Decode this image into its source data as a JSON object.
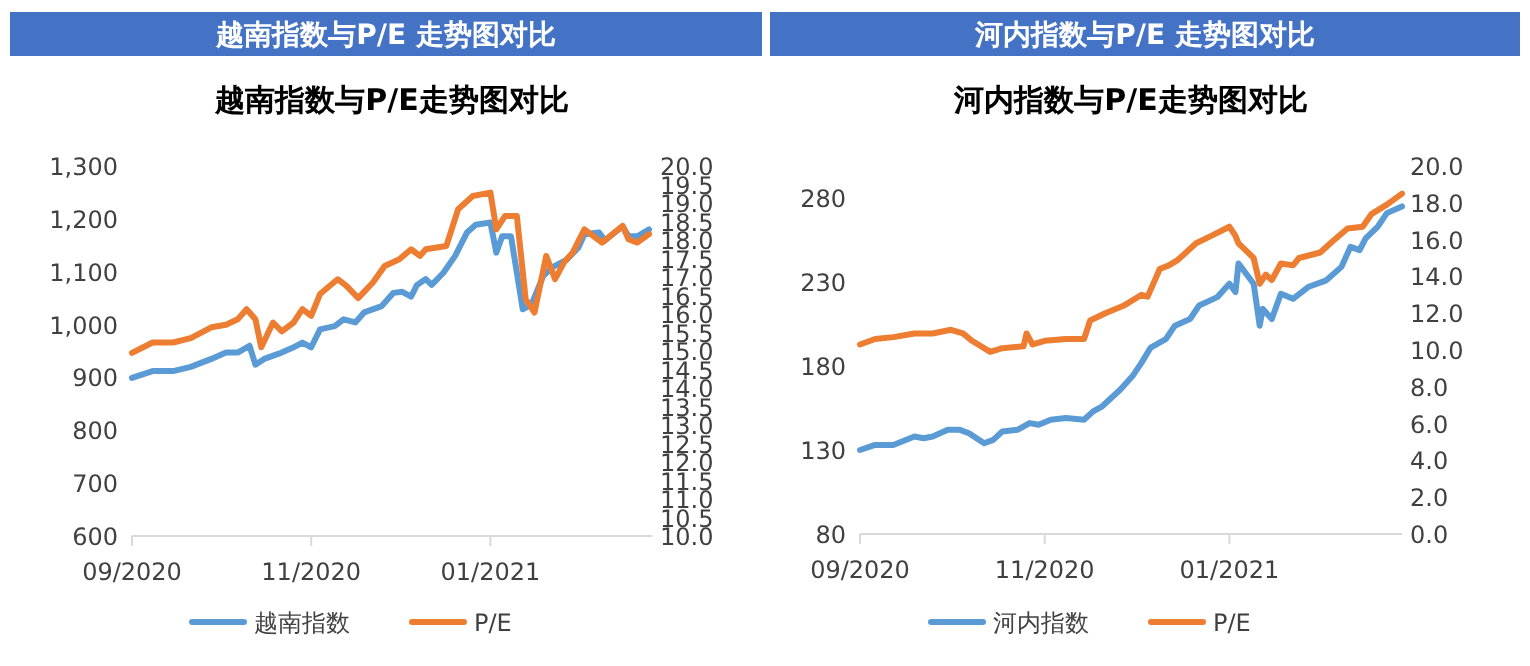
{
  "chart_data": [
    {
      "type": "line",
      "title": "越南指数与P/E 走势图对比",
      "subtitle": "越南指数与P/E走势图对比",
      "legend": "bottom",
      "grid": false,
      "marker": "none",
      "line_style": "solid",
      "xlim": [
        "2020-09-01",
        "2021-02-25"
      ],
      "xticks": [
        {
          "value": "2020-09-01",
          "label": "09/2020"
        },
        {
          "value": "2020-11-01",
          "label": "11/2020"
        },
        {
          "value": "2021-01-01",
          "label": "01/2021"
        }
      ],
      "ylim": [
        600,
        1300
      ],
      "yticks": [
        {
          "value": 600,
          "label": "600"
        },
        {
          "value": 700,
          "label": "700"
        },
        {
          "value": 800,
          "label": "800"
        },
        {
          "value": 900,
          "label": "900"
        },
        {
          "value": 1000,
          "label": "1,000"
        },
        {
          "value": 1100,
          "label": "1,100"
        },
        {
          "value": 1200,
          "label": "1,200"
        },
        {
          "value": 1300,
          "label": "1,300"
        }
      ],
      "y2lim": [
        10,
        20
      ],
      "y2ticks": [
        {
          "value": 10,
          "label": "10.0"
        },
        {
          "value": 10.5,
          "label": "10.5"
        },
        {
          "value": 11,
          "label": "11.0"
        },
        {
          "value": 11.5,
          "label": "11.5"
        },
        {
          "value": 12,
          "label": "12.0"
        },
        {
          "value": 12.5,
          "label": "12.5"
        },
        {
          "value": 13,
          "label": "13.0"
        },
        {
          "value": 13.5,
          "label": "13.5"
        },
        {
          "value": 14,
          "label": "14.0"
        },
        {
          "value": 14.5,
          "label": "14.5"
        },
        {
          "value": 15,
          "label": "15.0"
        },
        {
          "value": 15.5,
          "label": "15.5"
        },
        {
          "value": 16,
          "label": "16.0"
        },
        {
          "value": 16.5,
          "label": "16.5"
        },
        {
          "value": 17,
          "label": "17.0"
        },
        {
          "value": 17.5,
          "label": "17.5"
        },
        {
          "value": 18,
          "label": "18.0"
        },
        {
          "value": 18.5,
          "label": "18.5"
        },
        {
          "value": 19,
          "label": "19.0"
        },
        {
          "value": 19.5,
          "label": "19.5"
        },
        {
          "value": 20,
          "label": "20.0"
        }
      ],
      "series": [
        {
          "name": "越南指数",
          "color": "#5b9bd5",
          "x": [
            "2020-09-01",
            "2020-09-08",
            "2020-09-15",
            "2020-09-21",
            "2020-09-28",
            "2020-10-03",
            "2020-10-07",
            "2020-10-11",
            "2020-10-13",
            "2020-10-16",
            "2020-10-21",
            "2020-10-26",
            "2020-10-29",
            "2020-11-01",
            "2020-11-04",
            "2020-11-09",
            "2020-11-12",
            "2020-11-16",
            "2020-11-19",
            "2020-11-25",
            "2020-11-29",
            "2020-12-02",
            "2020-12-05",
            "2020-12-07",
            "2020-12-10",
            "2020-12-12",
            "2020-12-16",
            "2020-12-20",
            "2020-12-24",
            "2020-12-27",
            "2021-01-01",
            "2021-01-03",
            "2021-01-05",
            "2021-01-08",
            "2021-01-12",
            "2021-01-15",
            "2021-01-19",
            "2021-01-22",
            "2021-01-27",
            "2021-01-31",
            "2021-02-02",
            "2021-02-07",
            "2021-02-09",
            "2021-02-15",
            "2021-02-17",
            "2021-02-20",
            "2021-02-24"
          ],
          "values": [
            899,
            912,
            912,
            920,
            935,
            947,
            947,
            960,
            924,
            935,
            945,
            957,
            966,
            957,
            991,
            997,
            1010,
            1004,
            1023,
            1035,
            1060,
            1062,
            1053,
            1075,
            1086,
            1075,
            1098,
            1130,
            1174,
            1189,
            1193,
            1136,
            1167,
            1167,
            1029,
            1038,
            1092,
            1108,
            1123,
            1146,
            1171,
            1174,
            1159,
            1186,
            1167,
            1167,
            1180
          ]
        },
        {
          "name": "P/E",
          "color": "#ed7d31",
          "axis": "y2",
          "x": [
            "2020-09-01",
            "2020-09-08",
            "2020-09-15",
            "2020-09-21",
            "2020-09-28",
            "2020-10-03",
            "2020-10-07",
            "2020-10-10",
            "2020-10-13",
            "2020-10-15",
            "2020-10-19",
            "2020-10-22",
            "2020-10-26",
            "2020-10-29",
            "2020-11-01",
            "2020-11-04",
            "2020-11-10",
            "2020-11-13",
            "2020-11-17",
            "2020-11-22",
            "2020-11-26",
            "2020-12-01",
            "2020-12-05",
            "2020-12-08",
            "2020-12-10",
            "2020-12-17",
            "2020-12-21",
            "2020-12-26",
            "2021-01-01",
            "2021-01-03",
            "2021-01-06",
            "2021-01-10",
            "2021-01-13",
            "2021-01-16",
            "2021-01-20",
            "2021-01-23",
            "2021-01-26",
            "2021-01-29",
            "2021-02-02",
            "2021-02-08",
            "2021-02-15",
            "2021-02-17",
            "2021-02-20",
            "2021-02-24"
          ],
          "values": [
            14.95,
            15.23,
            15.23,
            15.35,
            15.64,
            15.71,
            15.86,
            16.13,
            15.86,
            15.1,
            15.77,
            15.53,
            15.77,
            16.13,
            15.95,
            16.54,
            16.94,
            16.76,
            16.43,
            16.85,
            17.3,
            17.48,
            17.75,
            17.57,
            17.75,
            17.84,
            18.83,
            19.19,
            19.28,
            18.29,
            18.65,
            18.65,
            16.4,
            16.04,
            17.57,
            16.94,
            17.39,
            17.66,
            18.29,
            17.93,
            18.38,
            18.02,
            17.93,
            18.16
          ]
        }
      ]
    },
    {
      "type": "line",
      "title": "河内指数与P/E 走势图对比",
      "subtitle": "河内指数与P/E走势图对比",
      "legend": "bottom",
      "grid": false,
      "marker": "none",
      "line_style": "solid",
      "xlim": [
        "2020-09-01",
        "2021-02-27"
      ],
      "xticks": [
        {
          "value": "2020-09-01",
          "label": "09/2020"
        },
        {
          "value": "2020-11-01",
          "label": "11/2020"
        },
        {
          "value": "2021-01-01",
          "label": "01/2021"
        }
      ],
      "ylim": [
        80,
        280
      ],
      "yticks": [
        80,
        130,
        180,
        230,
        280
      ],
      "y2lim": [
        0,
        20
      ],
      "y2ticks": [
        {
          "value": 0,
          "label": "0.0"
        },
        {
          "value": 2,
          "label": "2.0"
        },
        {
          "value": 4,
          "label": "4.0"
        },
        {
          "value": 6,
          "label": "6.0"
        },
        {
          "value": 8,
          "label": "8.0"
        },
        {
          "value": 10,
          "label": "10.0"
        },
        {
          "value": 12,
          "label": "12.0"
        },
        {
          "value": 14,
          "label": "14.0"
        },
        {
          "value": 16,
          "label": "16.0"
        },
        {
          "value": 18,
          "label": "18.0"
        },
        {
          "value": 20,
          "label": "20.0"
        }
      ],
      "series": [
        {
          "name": "河内指数",
          "color": "#5b9bd5",
          "x": [
            "2020-09-01",
            "2020-09-06",
            "2020-09-12",
            "2020-09-19",
            "2020-09-22",
            "2020-09-25",
            "2020-09-30",
            "2020-10-04",
            "2020-10-07",
            "2020-10-12",
            "2020-10-15",
            "2020-10-18",
            "2020-10-23",
            "2020-10-27",
            "2020-10-30",
            "2020-11-03",
            "2020-11-08",
            "2020-11-14",
            "2020-11-17",
            "2020-11-20",
            "2020-11-26",
            "2020-11-30",
            "2020-12-03",
            "2020-12-06",
            "2020-12-11",
            "2020-12-14",
            "2020-12-19",
            "2020-12-22",
            "2020-12-28",
            "2021-01-01",
            "2021-01-03",
            "2021-01-04",
            "2021-01-09",
            "2021-01-11",
            "2021-01-12",
            "2021-01-15",
            "2021-01-18",
            "2021-01-22",
            "2021-01-27",
            "2021-02-02",
            "2021-02-07",
            "2021-02-10",
            "2021-02-13",
            "2021-02-15",
            "2021-02-19",
            "2021-02-22",
            "2021-02-27"
          ],
          "values": [
            130,
            133,
            133,
            138,
            137,
            138,
            142,
            142,
            140,
            134,
            136,
            141,
            142,
            146,
            145,
            148,
            149,
            148,
            153,
            156,
            166,
            174,
            182,
            191,
            196,
            204,
            208,
            216,
            221,
            229,
            224,
            241,
            229,
            204,
            214,
            208,
            223,
            220,
            227,
            231,
            239,
            251,
            249,
            256,
            263,
            271,
            275
          ]
        },
        {
          "name": "P/E",
          "color": "#ed7d31",
          "axis": "y2",
          "x": [
            "2020-09-01",
            "2020-09-06",
            "2020-09-12",
            "2020-09-19",
            "2020-09-25",
            "2020-10-01",
            "2020-10-05",
            "2020-10-08",
            "2020-10-14",
            "2020-10-18",
            "2020-10-25",
            "2020-10-26",
            "2020-10-28",
            "2020-11-01",
            "2020-11-08",
            "2020-11-14",
            "2020-11-16",
            "2020-11-21",
            "2020-11-27",
            "2020-12-03",
            "2020-12-05",
            "2020-12-09",
            "2020-12-12",
            "2020-12-15",
            "2020-12-21",
            "2020-12-26",
            "2021-01-01",
            "2021-01-03",
            "2021-01-04",
            "2021-01-09",
            "2021-01-11",
            "2021-01-13",
            "2021-01-15",
            "2021-01-18",
            "2021-01-22",
            "2021-01-24",
            "2021-01-31",
            "2021-02-04",
            "2021-02-09",
            "2021-02-14",
            "2021-02-17",
            "2021-02-22",
            "2021-02-27"
          ],
          "values": [
            10.3,
            10.6,
            10.7,
            10.9,
            10.9,
            11.1,
            10.9,
            10.5,
            9.9,
            10.1,
            10.2,
            10.9,
            10.3,
            10.5,
            10.6,
            10.6,
            11.6,
            12.0,
            12.4,
            13.0,
            12.9,
            14.4,
            14.6,
            14.9,
            15.8,
            16.2,
            16.7,
            16.2,
            15.8,
            15.0,
            13.6,
            14.1,
            13.8,
            14.7,
            14.6,
            15.0,
            15.3,
            15.9,
            16.6,
            16.7,
            17.4,
            17.9,
            18.5
          ]
        }
      ]
    }
  ]
}
